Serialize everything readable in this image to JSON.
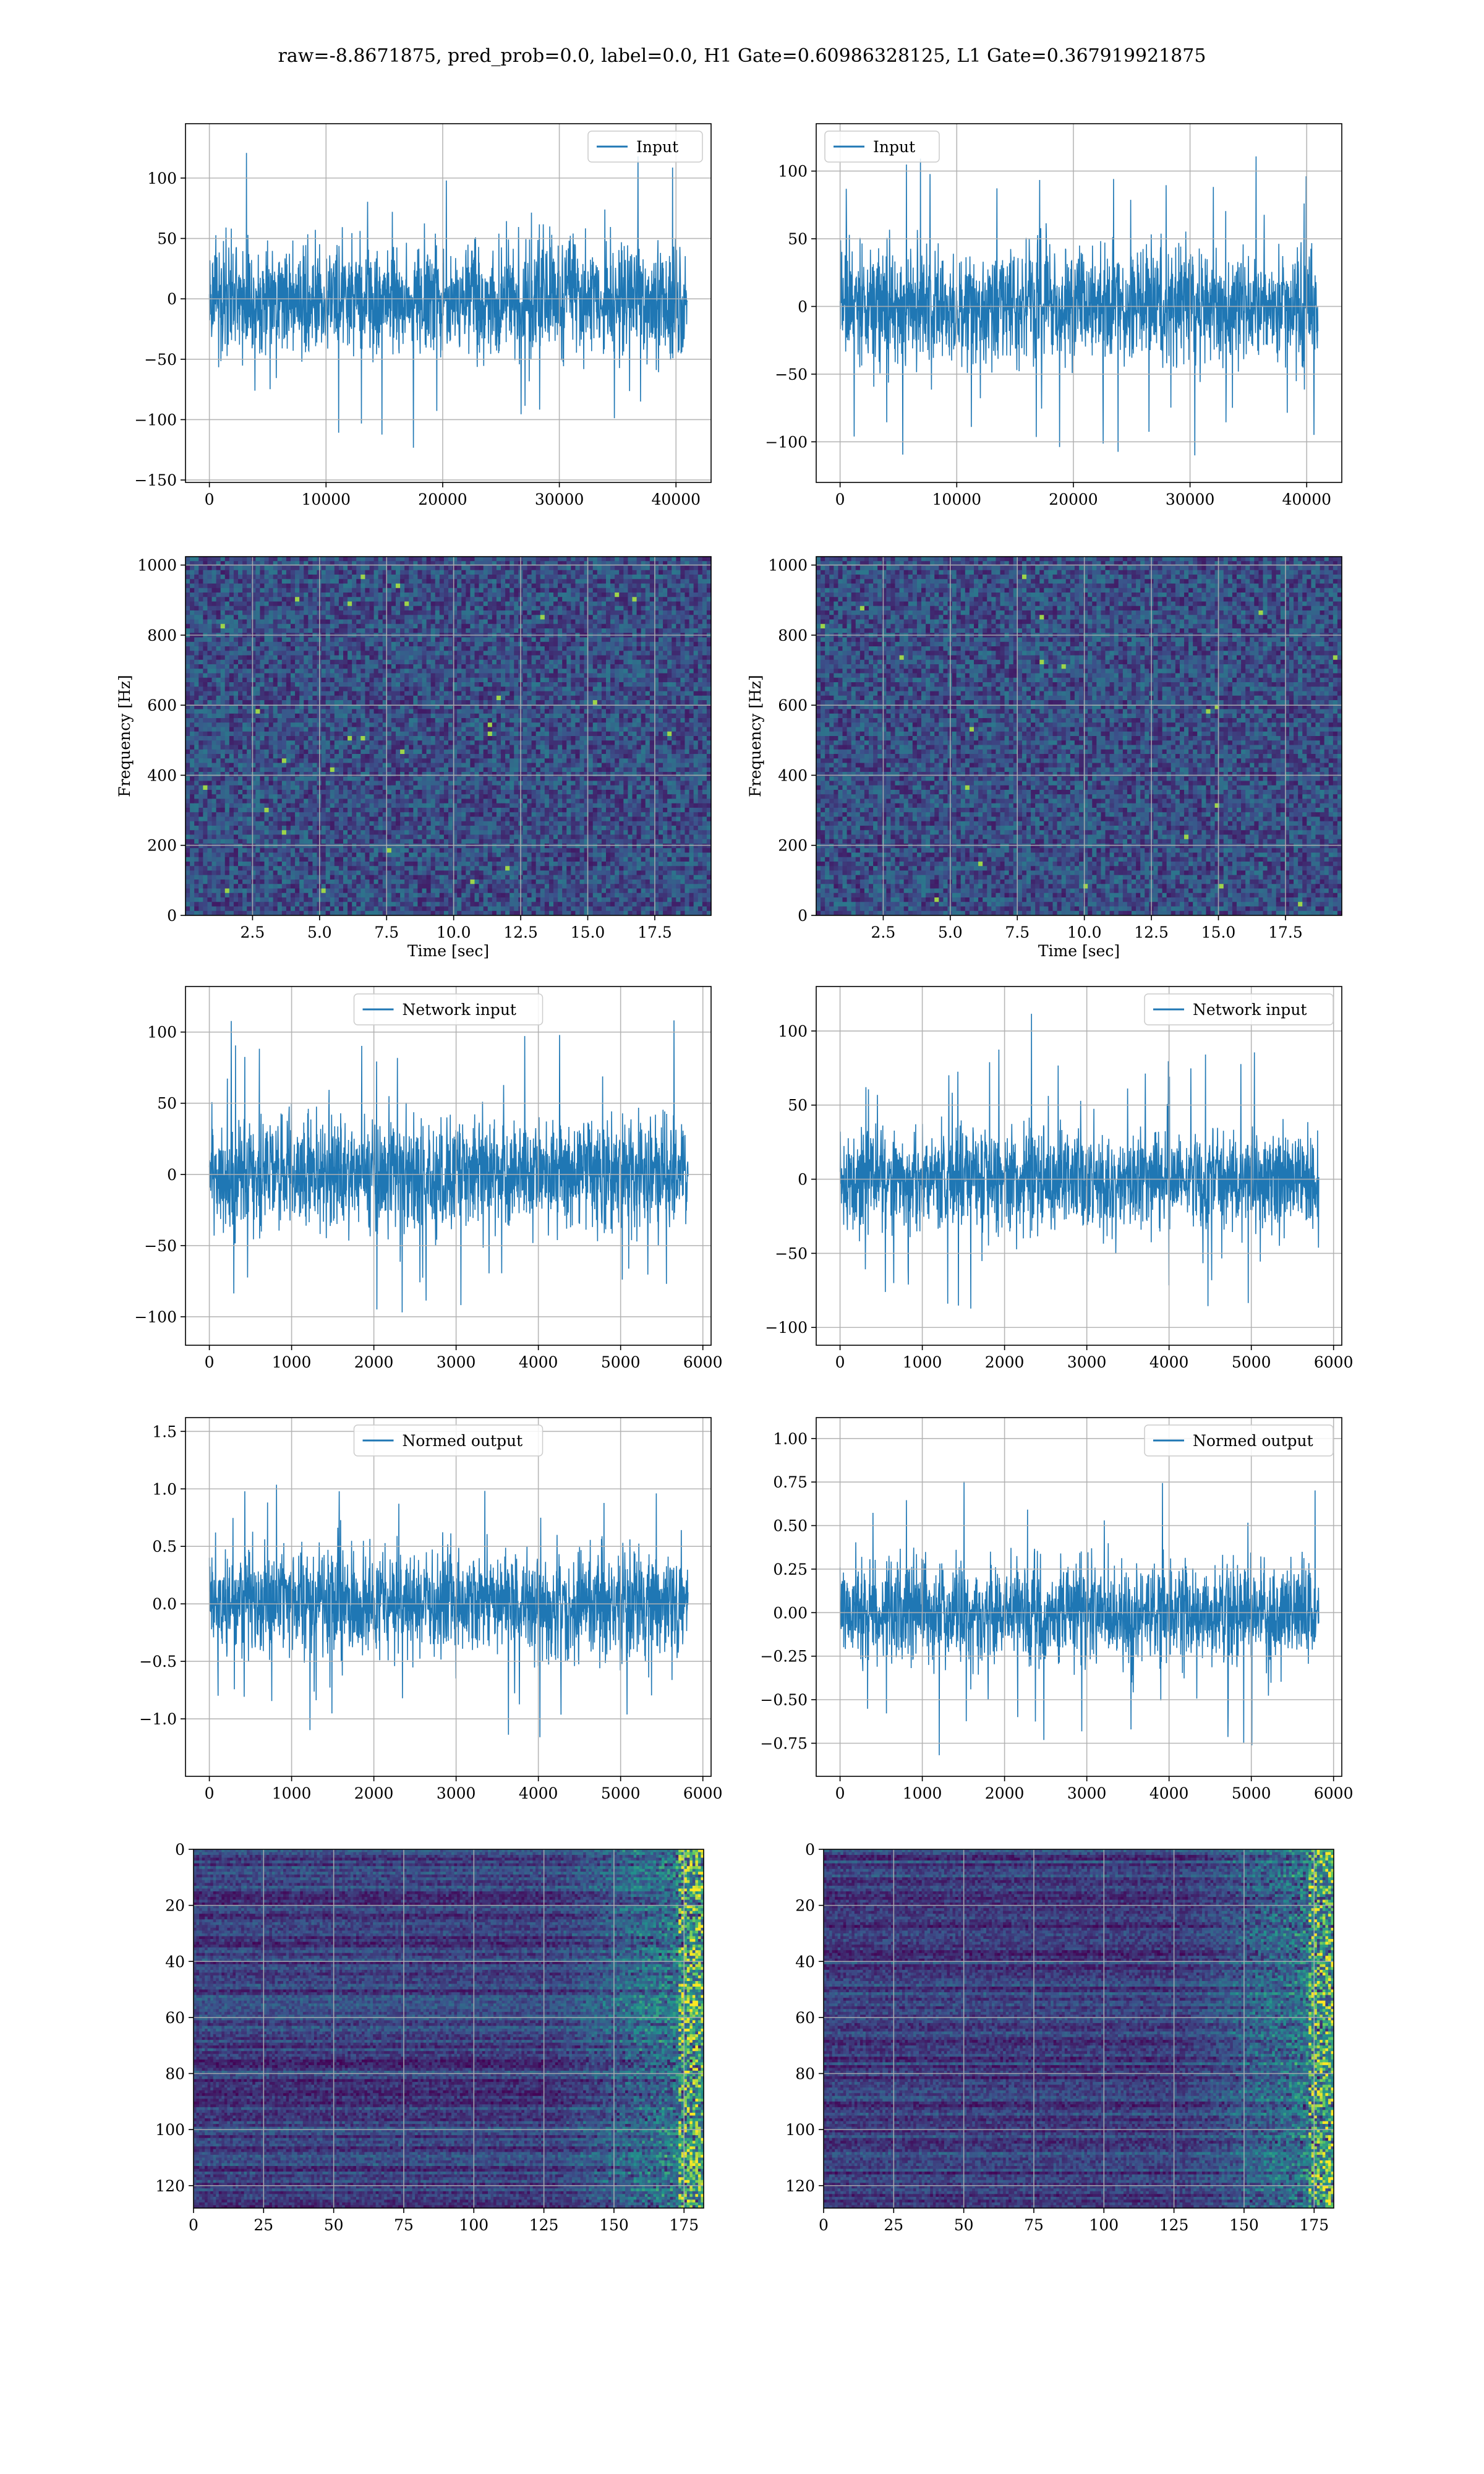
{
  "figure": {
    "suptitle": "raw=-8.8671875, pred_prob=0.0, label=0.0, H1 Gate=0.60986328125, L1 Gate=0.367919921875"
  },
  "colors": {
    "series": "#1f77b4",
    "grid": "#b0b0b0",
    "frame": "#000000",
    "heatmap_low": "#440154",
    "heatmap_high": "#fde725"
  },
  "chart_data": [
    {
      "id": "h1-input",
      "type": "line",
      "title": "",
      "xlabel": "",
      "ylabel": "",
      "legend": {
        "labels": [
          "Input"
        ],
        "placement": "upper right"
      },
      "xlim": [
        -2048,
        43008
      ],
      "ylim": [
        -152,
        145
      ],
      "xticks": [
        0,
        10000,
        20000,
        30000,
        40000
      ],
      "yticks": [
        -150,
        -100,
        -50,
        0,
        50,
        100
      ],
      "grid": true,
      "series": [
        {
          "name": "Input",
          "x_range": [
            0,
            40960
          ],
          "envelope": {
            "bulk": 55,
            "peak_max": 135,
            "peak_min": -138
          }
        }
      ]
    },
    {
      "id": "l1-input",
      "type": "line",
      "title": "",
      "xlabel": "",
      "ylabel": "",
      "legend": {
        "labels": [
          "Input"
        ],
        "placement": "upper left"
      },
      "xlim": [
        -2048,
        43008
      ],
      "ylim": [
        -130,
        135
      ],
      "xticks": [
        0,
        10000,
        20000,
        30000,
        40000
      ],
      "yticks": [
        -100,
        -50,
        0,
        50,
        100
      ],
      "grid": true,
      "series": [
        {
          "name": "Input",
          "x_range": [
            0,
            40960
          ],
          "envelope": {
            "bulk": 50,
            "peak_max": 125,
            "peak_min": -122
          }
        }
      ]
    },
    {
      "id": "h1-spectrogram",
      "type": "heatmap",
      "title": "",
      "xlabel": "Time [sec]",
      "ylabel": "Frequency [Hz]",
      "xlim": [
        0,
        19.6
      ],
      "ylim": [
        0,
        1024
      ],
      "xticks": [
        2.5,
        5.0,
        7.5,
        10.0,
        12.5,
        15.0,
        17.5
      ],
      "yticks": [
        0,
        200,
        400,
        600,
        800,
        1000
      ],
      "grid": true
    },
    {
      "id": "l1-spectrogram",
      "type": "heatmap",
      "title": "",
      "xlabel": "Time [sec]",
      "ylabel": "Frequency [Hz]",
      "xlim": [
        0,
        19.6
      ],
      "ylim": [
        0,
        1024
      ],
      "xticks": [
        2.5,
        5.0,
        7.5,
        10.0,
        12.5,
        15.0,
        17.5
      ],
      "yticks": [
        0,
        200,
        400,
        600,
        800,
        1000
      ],
      "grid": true
    },
    {
      "id": "h1-network-input",
      "type": "line",
      "title": "",
      "xlabel": "",
      "ylabel": "",
      "legend": {
        "labels": [
          "Network input"
        ],
        "placement": "upper center"
      },
      "xlim": [
        -290,
        6100
      ],
      "ylim": [
        -120,
        132
      ],
      "xticks": [
        0,
        1000,
        2000,
        3000,
        4000,
        5000,
        6000
      ],
      "yticks": [
        -100,
        -50,
        0,
        50,
        100
      ],
      "grid": true,
      "series": [
        {
          "name": "Network input",
          "x_range": [
            0,
            5820
          ],
          "envelope": {
            "bulk": 45,
            "peak_max": 123,
            "peak_min": -108
          }
        }
      ]
    },
    {
      "id": "l1-network-input",
      "type": "line",
      "title": "",
      "xlabel": "",
      "ylabel": "",
      "legend": {
        "labels": [
          "Network input"
        ],
        "placement": "upper right"
      },
      "xlim": [
        -290,
        6100
      ],
      "ylim": [
        -112,
        130
      ],
      "xticks": [
        0,
        1000,
        2000,
        3000,
        4000,
        5000,
        6000
      ],
      "yticks": [
        -100,
        -50,
        0,
        50,
        100
      ],
      "grid": true,
      "series": [
        {
          "name": "Network input",
          "x_range": [
            0,
            5820
          ],
          "envelope": {
            "bulk": 40,
            "peak_max": 118,
            "peak_min": -99
          }
        }
      ]
    },
    {
      "id": "h1-normed-output",
      "type": "line",
      "title": "",
      "xlabel": "",
      "ylabel": "",
      "legend": {
        "labels": [
          "Normed output"
        ],
        "placement": "upper center"
      },
      "xlim": [
        -290,
        6100
      ],
      "ylim": [
        -1.5,
        1.62
      ],
      "xticks": [
        0,
        1000,
        2000,
        3000,
        4000,
        5000,
        6000
      ],
      "yticks": [
        -1.0,
        -0.5,
        0.0,
        0.5,
        1.0,
        1.5
      ],
      "grid": true,
      "series": [
        {
          "name": "Normed output",
          "x_range": [
            0,
            5820
          ],
          "envelope": {
            "bulk": 0.55,
            "peak_max": 1.52,
            "peak_min": -1.35
          }
        }
      ]
    },
    {
      "id": "l1-normed-output",
      "type": "line",
      "title": "",
      "xlabel": "",
      "ylabel": "",
      "legend": {
        "labels": [
          "Normed output"
        ],
        "placement": "upper right"
      },
      "xlim": [
        -290,
        6100
      ],
      "ylim": [
        -0.94,
        1.12
      ],
      "xticks": [
        0,
        1000,
        2000,
        3000,
        4000,
        5000,
        6000
      ],
      "yticks": [
        -0.75,
        -0.5,
        -0.25,
        0.0,
        0.25,
        0.5,
        0.75,
        1.0
      ],
      "grid": true,
      "series": [
        {
          "name": "Normed output",
          "x_range": [
            0,
            5820
          ],
          "envelope": {
            "bulk": 0.35,
            "peak_max": 1.02,
            "peak_min": -0.85
          }
        }
      ]
    },
    {
      "id": "h1-feature-map",
      "type": "heatmap",
      "title": "",
      "xlabel": "",
      "ylabel": "",
      "xlim": [
        0,
        182
      ],
      "ylim": [
        128,
        0
      ],
      "xticks": [
        0,
        25,
        50,
        75,
        100,
        125,
        150,
        175
      ],
      "yticks": [
        0,
        20,
        40,
        60,
        80,
        100,
        120
      ],
      "grid": true,
      "rows": 128,
      "cols": 182
    },
    {
      "id": "l1-feature-map",
      "type": "heatmap",
      "title": "",
      "xlabel": "",
      "ylabel": "",
      "xlim": [
        0,
        182
      ],
      "ylim": [
        128,
        0
      ],
      "xticks": [
        0,
        25,
        50,
        75,
        100,
        125,
        150,
        175
      ],
      "yticks": [
        0,
        20,
        40,
        60,
        80,
        100,
        120
      ],
      "grid": true,
      "rows": 128,
      "cols": 182
    }
  ]
}
